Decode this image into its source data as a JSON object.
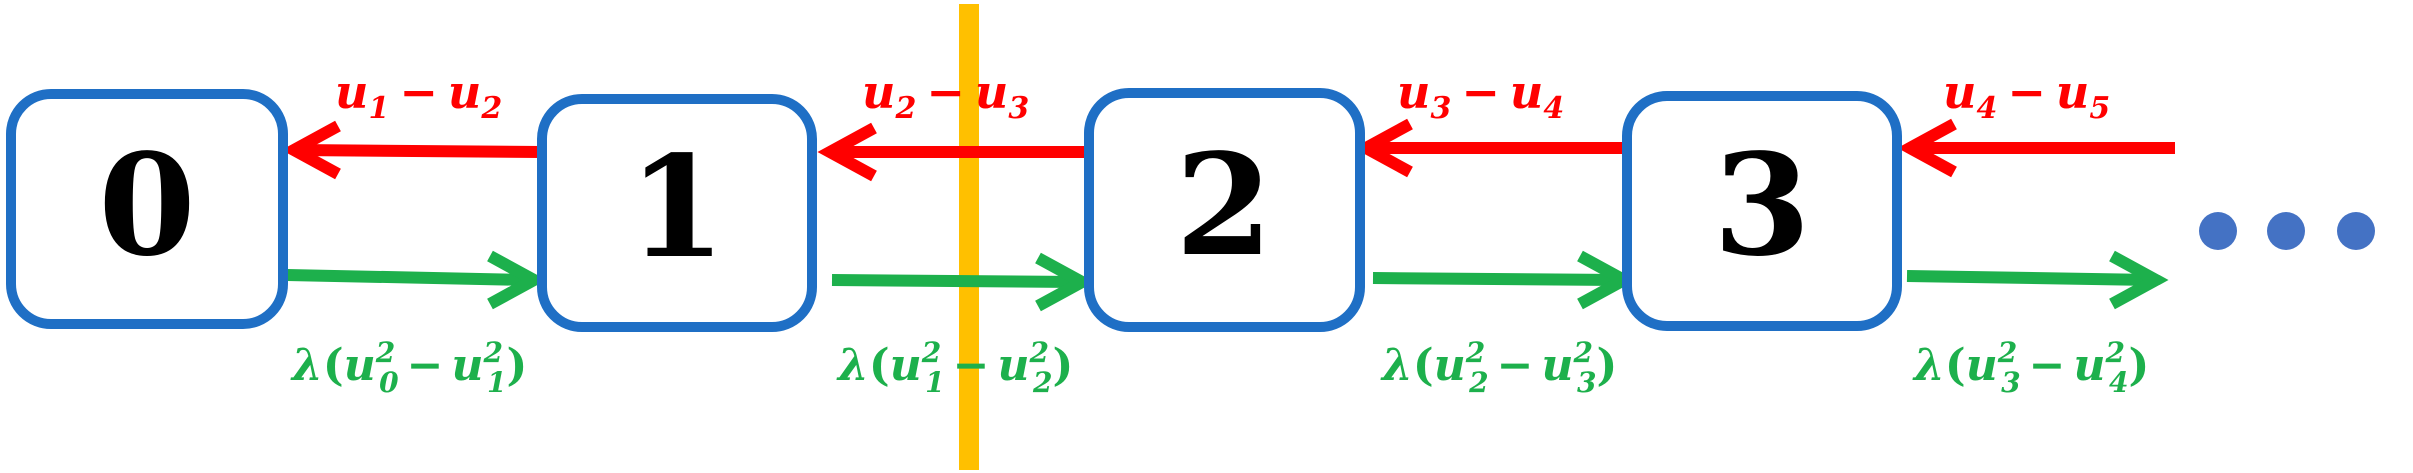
{
  "colors": {
    "node_border": "#1F6FC5",
    "node_fill": "#FFFFFF",
    "node_text": "#000000",
    "red_arrow": "#FF0000",
    "green_arrow": "#1DB04C",
    "cut_line": "#FFC000",
    "dots": "#4472C4"
  },
  "nodes": [
    {
      "label": "0"
    },
    {
      "label": "1"
    },
    {
      "label": "2"
    },
    {
      "label": "3"
    }
  ],
  "red_labels": [
    {
      "a": "u",
      "a_sub": "1",
      "op": "−",
      "b": "u",
      "b_sub": "2"
    },
    {
      "a": "u",
      "a_sub": "2",
      "op": "−",
      "b": "u",
      "b_sub": "3"
    },
    {
      "a": "u",
      "a_sub": "3",
      "op": "−",
      "b": "u",
      "b_sub": "4"
    },
    {
      "a": "u",
      "a_sub": "4",
      "op": "−",
      "b": "u",
      "b_sub": "5"
    }
  ],
  "green_labels": [
    {
      "lam": "λ",
      "open": "(",
      "a": "u",
      "a_sub": "0",
      "a_sup": "2",
      "op": "−",
      "b": "u",
      "b_sub": "1",
      "b_sup": "2",
      "close": ")"
    },
    {
      "lam": "λ",
      "open": "(",
      "a": "u",
      "a_sub": "1",
      "a_sup": "2",
      "op": "−",
      "b": "u",
      "b_sub": "2",
      "b_sup": "2",
      "close": ")"
    },
    {
      "lam": "λ",
      "open": "(",
      "a": "u",
      "a_sub": "2",
      "a_sup": "2",
      "op": "−",
      "b": "u",
      "b_sub": "3",
      "b_sup": "2",
      "close": ")"
    },
    {
      "lam": "λ",
      "open": "(",
      "a": "u",
      "a_sub": "3",
      "a_sup": "2",
      "op": "−",
      "b": "u",
      "b_sub": "4",
      "b_sup": "2",
      "close": ")"
    }
  ],
  "ellipsis": {
    "count": 3
  }
}
